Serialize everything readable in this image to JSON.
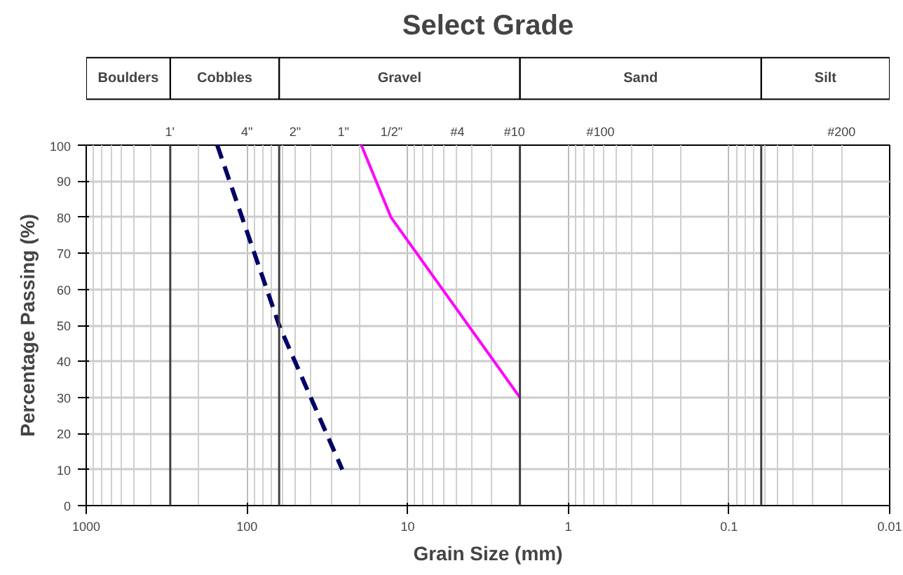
{
  "chart_data": {
    "type": "line",
    "title": "Select Grade",
    "xlabel": "Grain Size (mm)",
    "ylabel": "Percentage Passing (%)",
    "log": "x",
    "xlim": [
      1000,
      0.01
    ],
    "xticks": [
      1000,
      100,
      10,
      1,
      0.1,
      0.01
    ],
    "ylim": [
      0,
      100
    ],
    "yticks": [
      0,
      10,
      20,
      30,
      40,
      50,
      60,
      70,
      80,
      90,
      100
    ],
    "grid": true,
    "series": [
      {
        "color": "#000066",
        "line_style": "dashed",
        "x": [
          153,
          63,
          25.5
        ],
        "values": [
          100,
          50,
          10
        ]
      },
      {
        "color": "#ff00ff",
        "line_style": "solid",
        "x": [
          19.4,
          12.7,
          2
        ],
        "values": [
          100,
          80,
          30
        ]
      }
    ],
    "ref_lines": [
      {
        "axis": "x",
        "value": 300,
        "color": "#404040"
      },
      {
        "axis": "x",
        "value": 63,
        "color": "#404040"
      },
      {
        "axis": "x",
        "value": 2,
        "color": "#404040"
      },
      {
        "axis": "x",
        "value": 0.063,
        "color": "#404040"
      }
    ],
    "annotations": [
      "Boulders",
      "Cobbles",
      "Gravel",
      "Sand",
      "Silt",
      "1'",
      "4\"",
      "2\"",
      "1\"",
      "1/2\"",
      "#4",
      "#10",
      "#100",
      "#200"
    ]
  }
}
